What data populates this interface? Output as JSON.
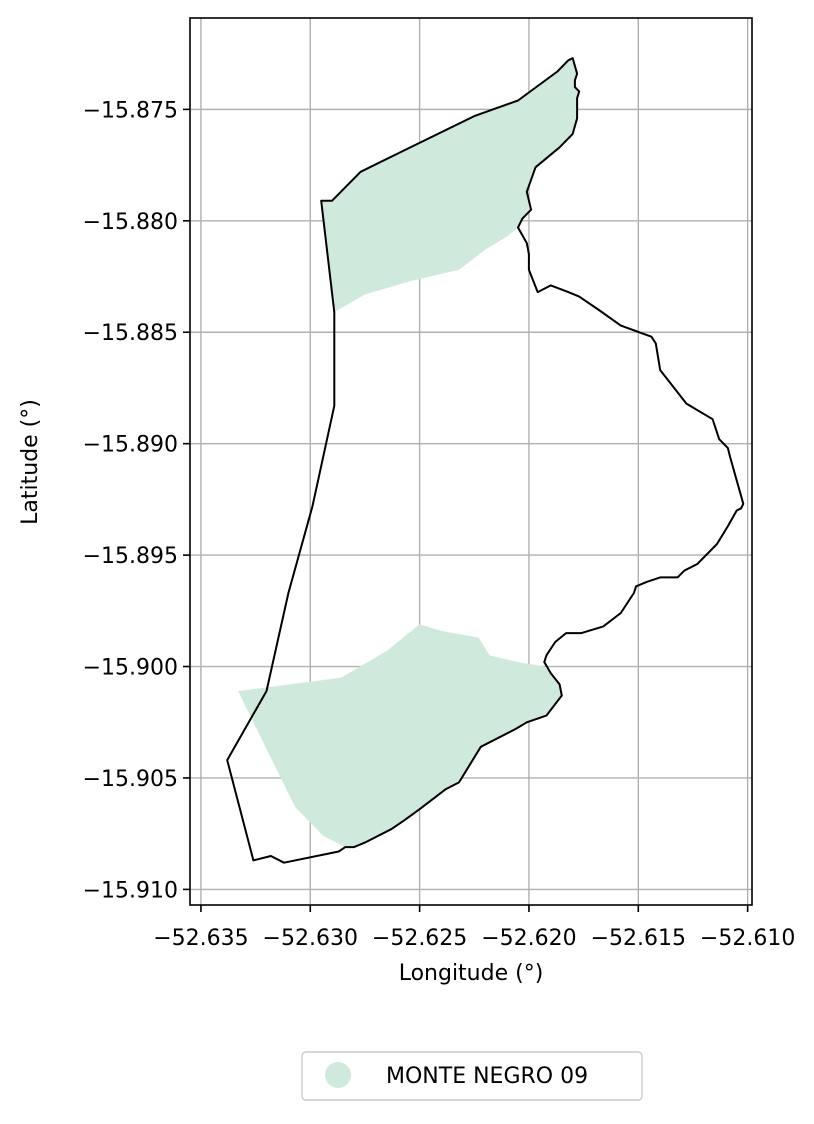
{
  "chart_data": {
    "type": "map",
    "xlabel": "Longitude (°)",
    "ylabel": "Latitude (°)",
    "xlim": [
      -52.6355,
      -52.6098
    ],
    "ylim": [
      -15.9107,
      -15.8709
    ],
    "grid": true,
    "x_ticks": [
      -52.635,
      -52.63,
      -52.625,
      -52.62,
      -52.615,
      -52.61
    ],
    "x_tick_labels": [
      "−52.635",
      "−52.630",
      "−52.625",
      "−52.620",
      "−52.615",
      "−52.610"
    ],
    "y_ticks": [
      -15.875,
      -15.88,
      -15.885,
      -15.89,
      -15.895,
      -15.9,
      -15.905,
      -15.91
    ],
    "y_tick_labels": [
      "−15.875",
      "−15.880",
      "−15.885",
      "−15.890",
      "−15.895",
      "−15.900",
      "−15.905",
      "−15.910"
    ],
    "legend": {
      "placement": "bottom-center",
      "entries": [
        {
          "label": "MONTE NEGRO 09",
          "color": "#cfeadd"
        }
      ]
    },
    "fill_color": "#cfeadd",
    "outline_color": "#000000",
    "boundary": [
      [
        -52.618,
        -15.8727
      ],
      [
        -52.6182,
        -15.8728
      ],
      [
        -52.6187,
        -15.8733
      ],
      [
        -52.6205,
        -15.8746
      ],
      [
        -52.6225,
        -15.8753
      ],
      [
        -52.6252,
        -15.8766
      ],
      [
        -52.6277,
        -15.8778
      ],
      [
        -52.629,
        -15.8791
      ],
      [
        -52.6295,
        -15.8791
      ],
      [
        -52.6289,
        -15.8841
      ],
      [
        -52.6289,
        -15.8883
      ],
      [
        -52.6299,
        -15.8928
      ],
      [
        -52.631,
        -15.8967
      ],
      [
        -52.632,
        -15.9011
      ],
      [
        -52.6338,
        -15.9042
      ],
      [
        -52.6326,
        -15.9087
      ],
      [
        -52.6318,
        -15.9085
      ],
      [
        -52.6312,
        -15.9088
      ],
      [
        -52.6287,
        -15.9083
      ],
      [
        -52.6284,
        -15.9081
      ],
      [
        -52.628,
        -15.9081
      ],
      [
        -52.6275,
        -15.9079
      ],
      [
        -52.6263,
        -15.9073
      ],
      [
        -52.6257,
        -15.9069
      ],
      [
        -52.625,
        -15.9064
      ],
      [
        -52.6238,
        -15.9055
      ],
      [
        -52.6232,
        -15.9052
      ],
      [
        -52.6222,
        -15.9036
      ],
      [
        -52.6206,
        -15.9028
      ],
      [
        -52.6201,
        -15.9025
      ],
      [
        -52.6192,
        -15.9022
      ],
      [
        -52.6185,
        -15.9013
      ],
      [
        -52.6186,
        -15.9008
      ],
      [
        -52.619,
        -15.9003
      ],
      [
        -52.6193,
        -15.8998
      ],
      [
        -52.6192,
        -15.8995
      ],
      [
        -52.6188,
        -15.8989
      ],
      [
        -52.6183,
        -15.8985
      ],
      [
        -52.6176,
        -15.8985
      ],
      [
        -52.6166,
        -15.8982
      ],
      [
        -52.6158,
        -15.8976
      ],
      [
        -52.6152,
        -15.8967
      ],
      [
        -52.6151,
        -15.8964
      ],
      [
        -52.6146,
        -15.8962
      ],
      [
        -52.614,
        -15.896
      ],
      [
        -52.6132,
        -15.896
      ],
      [
        -52.6129,
        -15.8957
      ],
      [
        -52.6123,
        -15.8954
      ],
      [
        -52.6114,
        -15.8945
      ],
      [
        -52.6109,
        -15.8937
      ],
      [
        -52.6105,
        -15.893
      ],
      [
        -52.6103,
        -15.8929
      ],
      [
        -52.6102,
        -15.8927
      ],
      [
        -52.6108,
        -15.8906
      ],
      [
        -52.6109,
        -15.8902
      ],
      [
        -52.6113,
        -15.8898
      ],
      [
        -52.6116,
        -15.8889
      ],
      [
        -52.6128,
        -15.8882
      ],
      [
        -52.614,
        -15.8867
      ],
      [
        -52.6142,
        -15.8855
      ],
      [
        -52.6144,
        -15.8852
      ],
      [
        -52.6158,
        -15.8847
      ],
      [
        -52.6168,
        -15.884
      ],
      [
        -52.6177,
        -15.8834
      ],
      [
        -52.6182,
        -15.8832
      ],
      [
        -52.619,
        -15.8829
      ],
      [
        -52.6196,
        -15.8832
      ],
      [
        -52.62,
        -15.8822
      ],
      [
        -52.62,
        -15.8815
      ],
      [
        -52.6201,
        -15.881
      ],
      [
        -52.6205,
        -15.8803
      ],
      [
        -52.6203,
        -15.8799
      ],
      [
        -52.6199,
        -15.8795
      ],
      [
        -52.6201,
        -15.8787
      ],
      [
        -52.6197,
        -15.8776
      ],
      [
        -52.6186,
        -15.8767
      ],
      [
        -52.618,
        -15.8761
      ],
      [
        -52.6178,
        -15.8754
      ],
      [
        -52.6178,
        -15.8745
      ],
      [
        -52.6177,
        -15.8742
      ],
      [
        -52.6179,
        -15.874
      ],
      [
        -52.6179,
        -15.8737
      ],
      [
        -52.6178,
        -15.8734
      ],
      [
        -52.618,
        -15.8727
      ]
    ],
    "zones": [
      {
        "name": "MONTE NEGRO 09",
        "polygon": [
          [
            -52.618,
            -15.8727
          ],
          [
            -52.6182,
            -15.8728
          ],
          [
            -52.6187,
            -15.8733
          ],
          [
            -52.6205,
            -15.8746
          ],
          [
            -52.6225,
            -15.8753
          ],
          [
            -52.6252,
            -15.8766
          ],
          [
            -52.6277,
            -15.8778
          ],
          [
            -52.629,
            -15.8791
          ],
          [
            -52.6295,
            -15.8791
          ],
          [
            -52.6289,
            -15.8841
          ],
          [
            -52.6275,
            -15.8833
          ],
          [
            -52.6254,
            -15.8827
          ],
          [
            -52.6232,
            -15.8822
          ],
          [
            -52.622,
            -15.8813
          ],
          [
            -52.621,
            -15.8807
          ],
          [
            -52.6205,
            -15.8803
          ],
          [
            -52.6203,
            -15.8799
          ],
          [
            -52.6199,
            -15.8795
          ],
          [
            -52.6201,
            -15.8787
          ],
          [
            -52.6197,
            -15.8776
          ],
          [
            -52.6186,
            -15.8767
          ],
          [
            -52.618,
            -15.8761
          ],
          [
            -52.6178,
            -15.8754
          ],
          [
            -52.6178,
            -15.8745
          ],
          [
            -52.6177,
            -15.8742
          ],
          [
            -52.6179,
            -15.874
          ],
          [
            -52.6179,
            -15.8737
          ],
          [
            -52.6178,
            -15.8734
          ]
        ]
      },
      {
        "name": "MONTE NEGRO 09",
        "polygon": [
          [
            -52.625,
            -15.8981
          ],
          [
            -52.624,
            -15.8984
          ],
          [
            -52.6223,
            -15.8987
          ],
          [
            -52.6218,
            -15.8995
          ],
          [
            -52.6205,
            -15.8998
          ],
          [
            -52.6193,
            -15.9
          ],
          [
            -52.619,
            -15.9003
          ],
          [
            -52.6186,
            -15.9008
          ],
          [
            -52.6185,
            -15.9013
          ],
          [
            -52.6192,
            -15.9022
          ],
          [
            -52.6201,
            -15.9025
          ],
          [
            -52.6206,
            -15.9028
          ],
          [
            -52.6222,
            -15.9036
          ],
          [
            -52.6232,
            -15.9052
          ],
          [
            -52.6238,
            -15.9055
          ],
          [
            -52.625,
            -15.9064
          ],
          [
            -52.6257,
            -15.9069
          ],
          [
            -52.6263,
            -15.9073
          ],
          [
            -52.6275,
            -15.9079
          ],
          [
            -52.628,
            -15.9081
          ],
          [
            -52.6284,
            -15.9081
          ],
          [
            -52.6294,
            -15.9076
          ],
          [
            -52.6307,
            -15.9063
          ],
          [
            -52.6333,
            -15.9011
          ],
          [
            -52.6286,
            -15.9005
          ],
          [
            -52.6265,
            -15.8993
          ]
        ]
      }
    ]
  }
}
